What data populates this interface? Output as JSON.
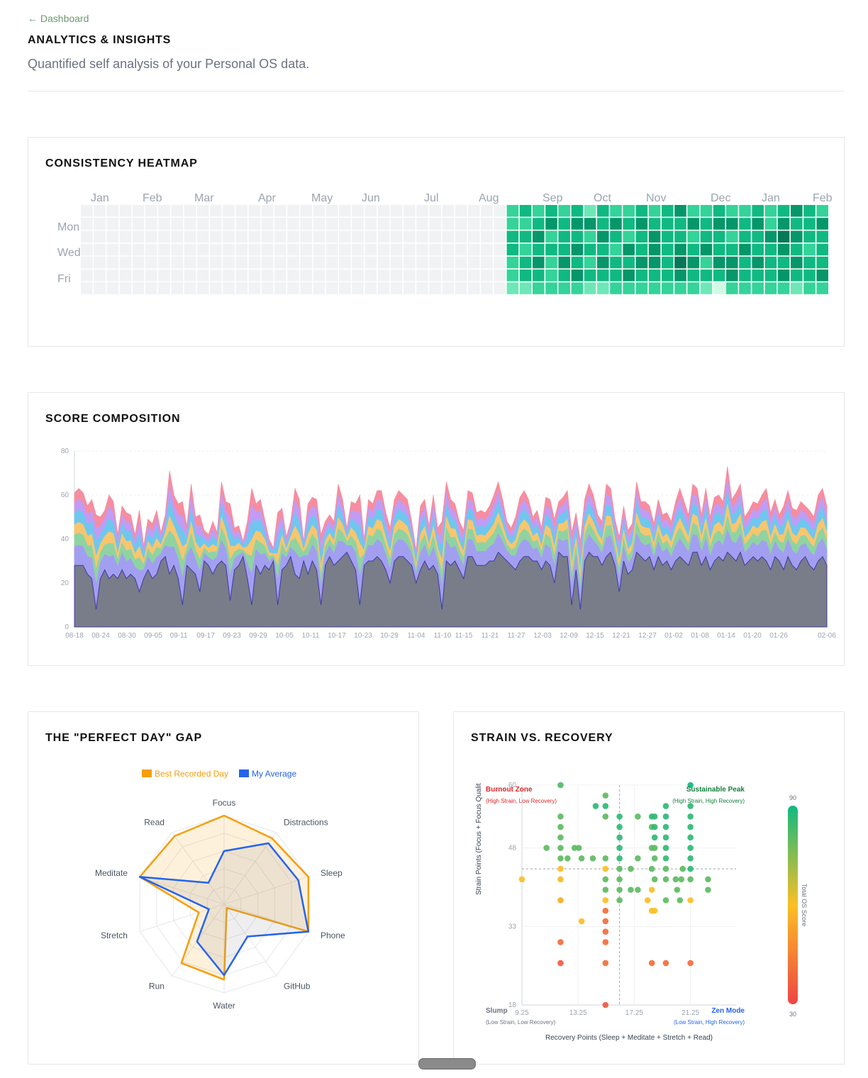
{
  "header": {
    "back_label": "← Dashboard",
    "title": "ANALYTICS & INSIGHTS",
    "subtitle": "Quantified self analysis of your Personal OS data."
  },
  "heatmap": {
    "title": "CONSISTENCY HEATMAP",
    "months": [
      "Jan",
      "Feb",
      "Mar",
      "Apr",
      "May",
      "Jun",
      "Jul",
      "Aug",
      "Sep",
      "Oct",
      "Nov",
      "Dec",
      "Jan",
      "Feb"
    ],
    "day_labels": [
      "Mon",
      "Wed",
      "Fri"
    ],
    "empty_color": "#f1f2f4",
    "palette": [
      "#d1fae5",
      "#6ee7b7",
      "#34d399",
      "#10b981",
      "#059669",
      "#047857"
    ]
  },
  "composition": {
    "title": "SCORE COMPOSITION"
  },
  "radar": {
    "title": "THE \"PERFECT DAY\" GAP",
    "legend_best": "Best Recorded Day",
    "legend_avg": "My Average",
    "color_best": "#f59e0b",
    "color_avg": "#2563eb",
    "axes": [
      "Focus",
      "Distractions",
      "Sleep",
      "Phone",
      "GitHub",
      "Water",
      "Run",
      "Stretch",
      "Meditate",
      "Read"
    ],
    "best": [
      1.0,
      0.92,
      1.0,
      1.0,
      0.05,
      0.85,
      0.82,
      0.3,
      1.0,
      0.95
    ],
    "average": [
      0.6,
      0.85,
      0.88,
      1.0,
      0.45,
      0.8,
      0.52,
      0.18,
      1.0,
      0.3
    ]
  },
  "scatter": {
    "title": "STRAIN VS. RECOVERY",
    "quadrants": {
      "burnout": "Burnout Zone",
      "burnout_sub": "(High Strain, Low Recovery)",
      "peak": "Sustainable Peak",
      "peak_sub": "(High Strain, High Recovery)",
      "slump": "Slump",
      "slump_sub": "(Low Strain, Low Recovery)",
      "zen": "Zen Mode",
      "zen_sub": "(Low Strain, High Recovery)"
    },
    "colorbar_label": "Total OS Score",
    "colorbar_max": "90",
    "colorbar_min": "30"
  },
  "chart_data": [
    {
      "type": "heatmap",
      "title": "CONSISTENCY HEATMAP",
      "x_labels": [
        "Jan",
        "Feb",
        "Mar",
        "Apr",
        "May",
        "Jun",
        "Jul",
        "Aug",
        "Sep",
        "Oct",
        "Nov",
        "Dec",
        "Jan",
        "Feb"
      ],
      "y_labels": [
        "Mon",
        "Wed",
        "Fri"
      ],
      "weeks_total": 58,
      "weeks_empty": 33,
      "active_levels": [
        [
          2,
          3,
          2,
          3,
          2,
          3,
          1,
          3,
          2,
          2,
          3,
          2,
          3,
          4,
          2,
          2,
          3,
          2,
          2,
          3,
          2,
          3,
          4,
          3,
          2
        ],
        [
          2,
          2,
          3,
          4,
          3,
          4,
          4,
          3,
          4,
          3,
          4,
          3,
          3,
          3,
          4,
          3,
          4,
          4,
          3,
          4,
          2,
          4,
          3,
          3,
          4
        ],
        [
          3,
          3,
          4,
          2,
          3,
          3,
          2,
          4,
          3,
          2,
          3,
          4,
          3,
          3,
          2,
          3,
          3,
          2,
          3,
          3,
          4,
          5,
          4,
          3,
          3
        ],
        [
          3,
          2,
          3,
          3,
          3,
          4,
          3,
          3,
          2,
          4,
          3,
          4,
          3,
          4,
          3,
          4,
          3,
          3,
          4,
          3,
          3,
          4,
          3,
          2,
          3
        ],
        [
          2,
          3,
          4,
          2,
          4,
          3,
          2,
          4,
          3,
          3,
          4,
          4,
          3,
          5,
          4,
          2,
          4,
          4,
          3,
          4,
          3,
          3,
          4,
          3,
          3
        ],
        [
          2,
          3,
          3,
          2,
          3,
          4,
          3,
          3,
          3,
          4,
          3,
          3,
          3,
          4,
          3,
          3,
          3,
          4,
          3,
          3,
          3,
          4,
          3,
          3,
          4
        ],
        [
          2,
          1,
          2,
          3,
          1,
          2,
          1,
          3,
          2,
          2,
          2,
          2,
          3,
          2,
          1,
          4,
          2,
          1,
          2,
          3,
          1,
          4,
          2,
          1,
          3
        ],
        [
          1,
          1,
          2,
          2,
          2,
          2,
          1,
          1,
          2,
          2,
          2,
          2,
          2,
          2,
          2,
          1,
          0,
          2,
          2,
          2,
          2,
          2,
          1,
          2,
          2
        ]
      ]
    },
    {
      "type": "area",
      "title": "SCORE COMPOSITION",
      "stacked": true,
      "ylim": [
        0,
        80
      ],
      "yticks": [
        0,
        20,
        40,
        60,
        80
      ],
      "x_tick_labels": [
        "08-18",
        "08-24",
        "08-30",
        "09-05",
        "09-11",
        "09-17",
        "09-23",
        "09-29",
        "10-05",
        "10-11",
        "10-17",
        "10-23",
        "10-29",
        "11-04",
        "11-10",
        "11-15",
        "11-21",
        "11-27",
        "12-03",
        "12-09",
        "12-15",
        "12-21",
        "12-27",
        "01-02",
        "01-08",
        "01-14",
        "01-20",
        "01-26",
        "02-06"
      ],
      "total_points": 175,
      "series_colors": [
        "#787d89",
        "#a29ff0",
        "#8fd3a3",
        "#f7c66e",
        "#6fc7ee",
        "#c09cf5",
        "#f68da0"
      ],
      "totals": [
        61,
        63,
        61,
        55,
        58,
        51,
        50,
        53,
        60,
        57,
        42,
        55,
        52,
        51,
        42,
        53,
        37,
        49,
        47,
        53,
        43,
        51,
        71,
        60,
        56,
        57,
        46,
        65,
        50,
        51,
        44,
        42,
        48,
        43,
        66,
        57,
        56,
        45,
        46,
        39,
        48,
        63,
        56,
        58,
        49,
        40,
        36,
        52,
        54,
        41,
        48,
        63,
        58,
        39,
        56,
        59,
        58,
        42,
        48,
        51,
        48,
        65,
        58,
        45,
        57,
        56,
        60,
        40,
        58,
        56,
        62,
        62,
        52,
        45,
        58,
        62,
        60,
        58,
        48,
        35,
        55,
        58,
        46,
        60,
        45,
        48,
        66,
        58,
        56,
        48,
        44,
        62,
        61,
        52,
        53,
        52,
        55,
        60,
        66,
        58,
        48,
        45,
        50,
        59,
        62,
        58,
        50,
        53,
        45,
        59,
        58,
        49,
        57,
        59,
        62,
        43,
        52,
        39,
        58,
        65,
        60,
        51,
        48,
        65,
        63,
        49,
        41,
        55,
        44,
        47,
        66,
        57,
        57,
        55,
        47,
        58,
        51,
        52,
        48,
        57,
        63,
        57,
        51,
        65,
        63,
        51,
        63,
        50,
        59,
        60,
        57,
        73,
        58,
        61,
        65,
        50,
        53,
        57,
        56,
        60,
        63,
        52,
        58,
        51,
        55,
        62,
        54,
        53,
        57,
        55,
        53,
        50,
        60,
        63,
        55
      ],
      "base": [
        28,
        28,
        28,
        24,
        22,
        8,
        22,
        26,
        22,
        24,
        22,
        26,
        22,
        24,
        22,
        16,
        22,
        26,
        22,
        24,
        30,
        32,
        24,
        28,
        22,
        10,
        28,
        26,
        24,
        16,
        30,
        28,
        24,
        28,
        30,
        28,
        12,
        26,
        28,
        32,
        22,
        10,
        28,
        24,
        28,
        26,
        30,
        10,
        26,
        28,
        32,
        24,
        22,
        30,
        24,
        30,
        26,
        10,
        28,
        32,
        28,
        30,
        32,
        34,
        30,
        26,
        10,
        28,
        30,
        30,
        32,
        30,
        26,
        20,
        30,
        32,
        32,
        30,
        28,
        20,
        26,
        30,
        26,
        28,
        24,
        8,
        30,
        28,
        30,
        26,
        22,
        32,
        32,
        28,
        28,
        28,
        30,
        30,
        34,
        32,
        30,
        28,
        26,
        30,
        32,
        32,
        30,
        30,
        26,
        30,
        28,
        20,
        34,
        32,
        32,
        10,
        26,
        8,
        30,
        34,
        32,
        32,
        28,
        32,
        34,
        28,
        16,
        30,
        24,
        26,
        34,
        32,
        30,
        32,
        26,
        32,
        28,
        30,
        26,
        30,
        32,
        30,
        28,
        34,
        34,
        28,
        32,
        26,
        30,
        32,
        30,
        34,
        32,
        30,
        34,
        28,
        30,
        32,
        30,
        32,
        30,
        26,
        32,
        30,
        26,
        32,
        28,
        26,
        30,
        32,
        28,
        26,
        30,
        32,
        28
      ]
    },
    {
      "type": "radar",
      "title": "THE \"PERFECT DAY\" GAP",
      "axes": [
        "Focus",
        "Distractions",
        "Sleep",
        "Phone",
        "GitHub",
        "Water",
        "Run",
        "Stretch",
        "Meditate",
        "Read"
      ],
      "series": [
        {
          "name": "Best Recorded Day",
          "values": [
            1.0,
            0.92,
            1.0,
            1.0,
            0.05,
            0.85,
            0.82,
            0.3,
            1.0,
            0.95
          ]
        },
        {
          "name": "My Average",
          "values": [
            0.6,
            0.85,
            0.88,
            1.0,
            0.45,
            0.8,
            0.52,
            0.18,
            1.0,
            0.3
          ]
        }
      ]
    },
    {
      "type": "scatter",
      "title": "STRAIN VS. RECOVERY",
      "xlabel": "Recovery Points (Sleep + Meditate + Stretch + Read)",
      "ylabel": "Strain Points (Focus + Focus Qualit",
      "xlim": [
        9.25,
        24.5
      ],
      "ylim": [
        18,
        60
      ],
      "xticks": [
        9.25,
        13.25,
        17.25,
        21.25
      ],
      "yticks": [
        18,
        33,
        48,
        60
      ],
      "x_threshold": 16.2,
      "y_threshold": 44,
      "color_scale": [
        30,
        90
      ],
      "points": [
        [
          12,
          60,
          82
        ],
        [
          12,
          54,
          80
        ],
        [
          12,
          52,
          80
        ],
        [
          12,
          50,
          80
        ],
        [
          12,
          48,
          80
        ],
        [
          12,
          46,
          80
        ],
        [
          12,
          44,
          60
        ],
        [
          12,
          42,
          58
        ],
        [
          12,
          38,
          55
        ],
        [
          12,
          30,
          40
        ],
        [
          12,
          26,
          35
        ],
        [
          11,
          48,
          80
        ],
        [
          12.5,
          46,
          80
        ],
        [
          13,
          48,
          80
        ],
        [
          13.3,
          48,
          80
        ],
        [
          13.5,
          46,
          80
        ],
        [
          13.5,
          34,
          60
        ],
        [
          9.25,
          42,
          60
        ],
        [
          14.3,
          46,
          80
        ],
        [
          14.5,
          56,
          86
        ],
        [
          15.2,
          56,
          86
        ],
        [
          15.2,
          58,
          80
        ],
        [
          15.2,
          54,
          80
        ],
        [
          15.2,
          46,
          80
        ],
        [
          15.2,
          44,
          60
        ],
        [
          15.2,
          42,
          80
        ],
        [
          15.2,
          40,
          80
        ],
        [
          15.2,
          38,
          60
        ],
        [
          15.2,
          36,
          40
        ],
        [
          15.2,
          34,
          40
        ],
        [
          15.2,
          32,
          40
        ],
        [
          15.2,
          30,
          40
        ],
        [
          15.2,
          26,
          40
        ],
        [
          15.2,
          18,
          35
        ],
        [
          16.2,
          54,
          86
        ],
        [
          16.2,
          52,
          86
        ],
        [
          16.2,
          50,
          86
        ],
        [
          16.2,
          48,
          86
        ],
        [
          16.2,
          46,
          86
        ],
        [
          16.2,
          44,
          80
        ],
        [
          16.2,
          42,
          80
        ],
        [
          16.2,
          40,
          80
        ],
        [
          16.2,
          38,
          80
        ],
        [
          17,
          40,
          80
        ],
        [
          17,
          44,
          80
        ],
        [
          17.5,
          54,
          80
        ],
        [
          17.5,
          46,
          80
        ],
        [
          17.5,
          40,
          80
        ],
        [
          18.2,
          38,
          60
        ],
        [
          18.5,
          36,
          60
        ],
        [
          18.5,
          40,
          60
        ],
        [
          18.5,
          48,
          80
        ],
        [
          18.5,
          52,
          80
        ],
        [
          18.5,
          54,
          86
        ],
        [
          18.5,
          44,
          80
        ],
        [
          18.7,
          36,
          60
        ],
        [
          18.5,
          26,
          40
        ],
        [
          18.7,
          50,
          86
        ],
        [
          18.7,
          52,
          86
        ],
        [
          18.7,
          46,
          80
        ],
        [
          18.7,
          48,
          80
        ],
        [
          18.7,
          54,
          86
        ],
        [
          18.7,
          42,
          80
        ],
        [
          19.5,
          44,
          80
        ],
        [
          19.5,
          56,
          86
        ],
        [
          19.5,
          54,
          86
        ],
        [
          19.5,
          52,
          86
        ],
        [
          19.5,
          50,
          86
        ],
        [
          19.5,
          48,
          86
        ],
        [
          19.5,
          46,
          86
        ],
        [
          19.5,
          42,
          80
        ],
        [
          19.5,
          38,
          80
        ],
        [
          19.5,
          26,
          40
        ],
        [
          20.2,
          42,
          80
        ],
        [
          20.3,
          40,
          80
        ],
        [
          20.6,
          42,
          80
        ],
        [
          20.7,
          44,
          80
        ],
        [
          21.25,
          60,
          90
        ],
        [
          21.25,
          56,
          86
        ],
        [
          21.25,
          54,
          86
        ],
        [
          21.25,
          52,
          86
        ],
        [
          21.25,
          50,
          86
        ],
        [
          21.25,
          48,
          86
        ],
        [
          21.25,
          46,
          86
        ],
        [
          21.25,
          44,
          86
        ],
        [
          21.25,
          42,
          80
        ],
        [
          21.25,
          38,
          60
        ],
        [
          21.25,
          26,
          40
        ],
        [
          22.5,
          42,
          80
        ],
        [
          22.5,
          40,
          80
        ],
        [
          20.5,
          38,
          80
        ]
      ]
    }
  ]
}
